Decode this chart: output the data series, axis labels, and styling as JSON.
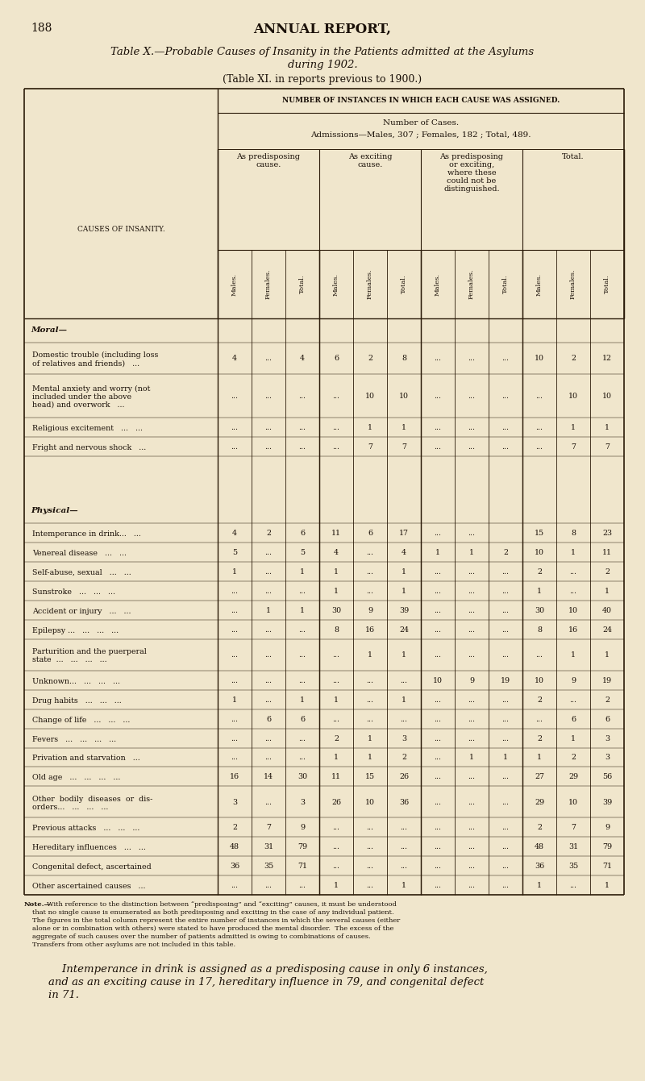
{
  "page_number": "188",
  "main_title": "ANNUAL REPORT,",
  "table_title_line1": "Table X.—Probable Causes of Insanity in the Patients admitted at the Asylums",
  "table_title_line2": "during 1902.",
  "table_subtitle": "(Table XI. in reports previous to 1900.)",
  "col_header_main": "Number of Instances in which each Cause was assigned.",
  "col_header_cases": "Number of Cases.",
  "col_header_admissions": "Admissions—Males, 307 ; Females, 182 ; Total, 489.",
  "group_headers": [
    "As predisposing\ncause.",
    "As exciting\ncause.",
    "As predisposing\nor exciting,\nwhere these\ncould not be\ndistinguished.",
    "Total."
  ],
  "sub_cols": [
    "Males.",
    "Females.",
    "Total."
  ],
  "row_label_col": "Causes of Insanity.",
  "rows": [
    {
      "label": "Moral—",
      "type": "section",
      "data": [
        "",
        "",
        "",
        "",
        "",
        "",
        "",
        "",
        "",
        "",
        "",
        ""
      ]
    },
    {
      "label": "Domestic trouble (including loss\nof relatives and friends)   ...",
      "type": "data2",
      "data": [
        "4",
        "...",
        "4",
        "6",
        "2",
        "8",
        "...",
        "...",
        "...",
        "10",
        "2",
        "12"
      ]
    },
    {
      "label": "Mental anxiety and worry (not\nincluded under the above\nhead) and overwork   ...",
      "type": "data3",
      "data": [
        "...",
        "...",
        "...",
        "...",
        "10",
        "10",
        "...",
        "...",
        "...",
        "...",
        "10",
        "10"
      ]
    },
    {
      "label": "Religious excitement   ...   ...",
      "type": "data1",
      "data": [
        "...",
        "...",
        "...",
        "...",
        "1",
        "1",
        "...",
        "...",
        "...",
        "...",
        "1",
        "1"
      ]
    },
    {
      "label": "Fright and nervous shock   ...",
      "type": "data1",
      "data": [
        "...",
        "...",
        "...",
        "...",
        "7",
        "7",
        "...",
        "...",
        "...",
        "...",
        "7",
        "7"
      ]
    },
    {
      "label": "",
      "type": "spacer",
      "data": [
        "",
        "",
        "",
        "",
        "",
        "",
        "",
        "",
        "",
        "",
        "",
        ""
      ]
    },
    {
      "label": "",
      "type": "spacer",
      "data": [
        "",
        "",
        "",
        "",
        "",
        "",
        "",
        "",
        "",
        "",
        "",
        ""
      ]
    },
    {
      "label": "Physical—",
      "type": "section",
      "data": [
        "",
        "",
        "",
        "",
        "",
        "",
        "",
        "",
        "",
        "",
        "",
        ""
      ]
    },
    {
      "label": "Intemperance in drink...   ...",
      "type": "data1",
      "data": [
        "4",
        "2",
        "6",
        "11",
        "6",
        "17",
        "...",
        "...",
        "",
        "15",
        "8",
        "23"
      ]
    },
    {
      "label": "Venereal disease   ...   ...",
      "type": "data1",
      "data": [
        "5",
        "...",
        "5",
        "4",
        "...",
        "4",
        "1",
        "1",
        "2",
        "10",
        "1",
        "11"
      ]
    },
    {
      "label": "Self-abuse, sexual   ...   ...",
      "type": "data1",
      "data": [
        "1",
        "...",
        "1",
        "1",
        "...",
        "1",
        "...",
        "...",
        "...",
        "2",
        "...",
        "2"
      ]
    },
    {
      "label": "Sunstroke   ...   ...   ...",
      "type": "data1",
      "data": [
        "...",
        "...",
        "...",
        "1",
        "...",
        "1",
        "...",
        "...",
        "...",
        "1",
        "...",
        "1"
      ]
    },
    {
      "label": "Accident or injury   ...   ...",
      "type": "data1",
      "data": [
        "...",
        "1",
        "1",
        "30",
        "9",
        "39",
        "...",
        "...",
        "...",
        "30",
        "10",
        "40"
      ]
    },
    {
      "label": "Epilepsy ...   ...   ...   ...",
      "type": "data1",
      "data": [
        "...",
        "...",
        "...",
        "8",
        "16",
        "24",
        "...",
        "...",
        "...",
        "8",
        "16",
        "24"
      ]
    },
    {
      "label": "Parturition and the puerperal\nstate  ...   ...   ...   ...",
      "type": "data2",
      "data": [
        "...",
        "...",
        "...",
        "...",
        "1",
        "1",
        "...",
        "...",
        "...",
        "...",
        "1",
        "1"
      ]
    },
    {
      "label": "Unknown...   ...   ...   ...",
      "type": "data1",
      "data": [
        "...",
        "...",
        "...",
        "...",
        "...",
        "...",
        "10",
        "9",
        "19",
        "10",
        "9",
        "19"
      ]
    },
    {
      "label": "Drug habits   ...   ...   ...",
      "type": "data1",
      "data": [
        "1",
        "...",
        "1",
        "1",
        "...",
        "1",
        "...",
        "...",
        "...",
        "2",
        "...",
        "2"
      ]
    },
    {
      "label": "Change of life   ...   ...   ...",
      "type": "data1",
      "data": [
        "...",
        "6",
        "6",
        "...",
        "...",
        "...",
        "...",
        "...",
        "...",
        "...",
        "6",
        "6"
      ]
    },
    {
      "label": "Fevers   ...   ...   ...   ...",
      "type": "data1",
      "data": [
        "...",
        "...",
        "...",
        "2",
        "1",
        "3",
        "...",
        "...",
        "...",
        "2",
        "1",
        "3"
      ]
    },
    {
      "label": "Privation and starvation   ...",
      "type": "data1",
      "data": [
        "...",
        "...",
        "...",
        "1",
        "1",
        "2",
        "...",
        "1",
        "1",
        "1",
        "2",
        "3"
      ]
    },
    {
      "label": "Old age   ...   ...   ...   ...",
      "type": "data1",
      "data": [
        "16",
        "14",
        "30",
        "11",
        "15",
        "26",
        "...",
        "...",
        "...",
        "27",
        "29",
        "56"
      ]
    },
    {
      "label": "Other  bodily  diseases  or  dis-\norders...   ...   ...   ...",
      "type": "data2",
      "data": [
        "3",
        "...",
        "3",
        "26",
        "10",
        "36",
        "...",
        "...",
        "...",
        "29",
        "10",
        "39"
      ]
    },
    {
      "label": "Previous attacks   ...   ...   ...",
      "type": "data1",
      "data": [
        "2",
        "7",
        "9",
        "...",
        "...",
        "...",
        "...",
        "...",
        "...",
        "2",
        "7",
        "9"
      ]
    },
    {
      "label": "Hereditary influences   ...   ...",
      "type": "data1",
      "data": [
        "48",
        "31",
        "79",
        "...",
        "...",
        "...",
        "...",
        "...",
        "...",
        "48",
        "31",
        "79"
      ]
    },
    {
      "label": "Congenital defect, ascertained",
      "type": "data1",
      "data": [
        "36",
        "35",
        "71",
        "...",
        "...",
        "...",
        "...",
        "...",
        "...",
        "36",
        "35",
        "71"
      ]
    },
    {
      "label": "Other ascertained causes   ...",
      "type": "data1",
      "data": [
        "...",
        "...",
        "...",
        "1",
        "...",
        "1",
        "...",
        "...",
        "...",
        "1",
        "...",
        "1"
      ]
    }
  ],
  "note_text": "Note.—With reference to the distinction between “predisposing” and “exciting” causes, it must be understood\nthat no single cause is enumerated as both predisposing and exciting in the case of any individual patient.\nThe figures in the total column represent the entire number of instances in which the several causes (either\nalone or in combination with others) were stated to have produced the mental disorder.  The excess of the\naggregate of such causes over the number of patients admitted is owing to combinations of causes.\nTransfers from other asylums are not included in this table.",
  "footer_text": "    Intemperance in drink is assigned as a predisposing cause in only 6 instances,\nand as an exciting cause in 17, hereditary influence in 79, and congenital defect\nin 71.",
  "bg_color": "#f0e6cc",
  "text_color": "#1a1008",
  "line_color": "#2a1a08"
}
